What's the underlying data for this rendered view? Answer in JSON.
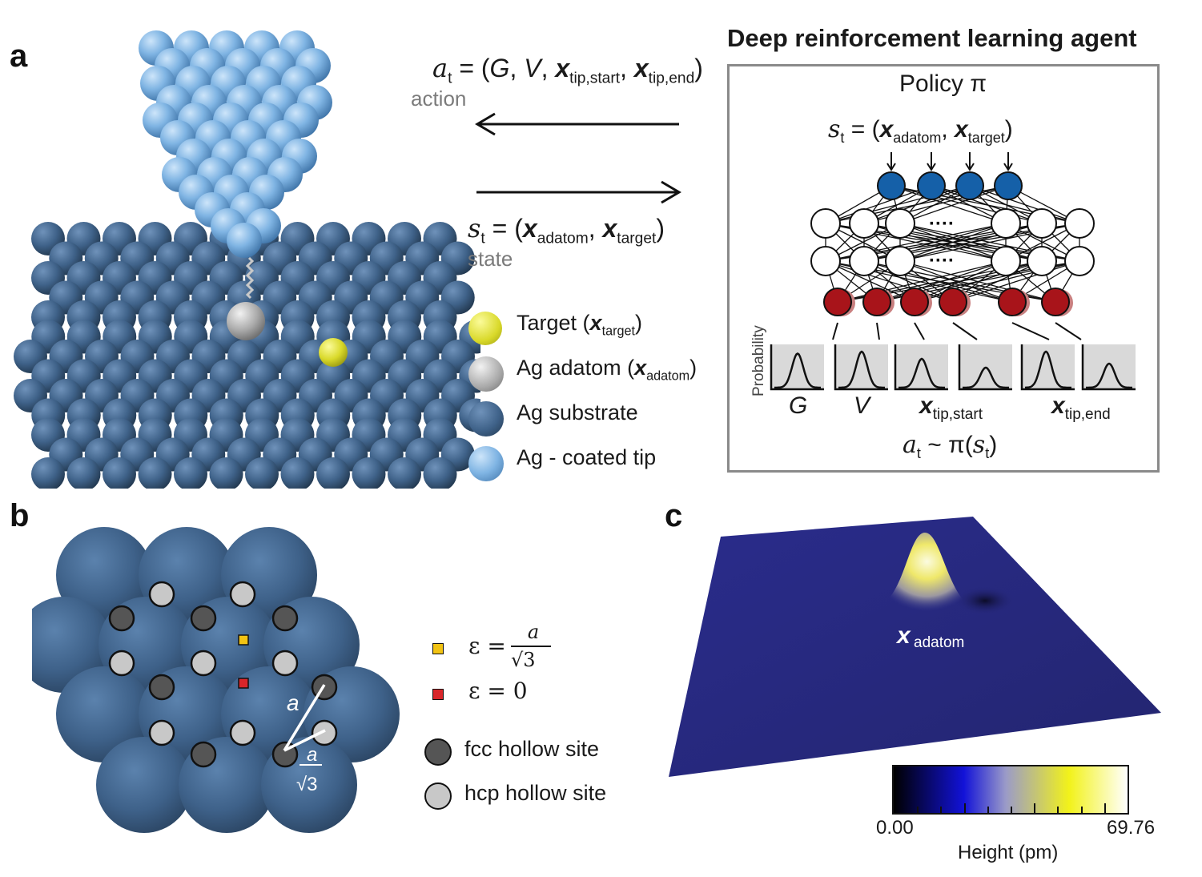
{
  "panels": {
    "a": "a",
    "b": "b",
    "c": "c"
  },
  "panel_a": {
    "action_eq": {
      "lhs": "a",
      "sub": "t",
      "eq": " = (",
      "g": "G",
      "comma1": ", ",
      "v": "V",
      "comma2": ", ",
      "x": "x",
      "sub_start": "tip,start",
      "comma3": ", ",
      "x2": "x",
      "sub_end": "tip,end",
      "close": ")"
    },
    "action_label": "action",
    "state_eq": {
      "lhs": "s",
      "sub": "t",
      "eq": " = (",
      "x": "x",
      "sub_adatom": "adatom",
      "comma": ", ",
      "x2": "x",
      "sub_target": "target",
      "close": ")"
    },
    "state_label": "state",
    "legend": [
      {
        "pre": "Target (",
        "x": "x",
        "sub": "target",
        "post": ")",
        "color": "#e2e23a"
      },
      {
        "pre": "Ag adatom (",
        "x": "x",
        "sub": "adatom",
        "post": ")",
        "color": "#b0b0b0"
      },
      {
        "pre": "Ag substrate",
        "x": "",
        "sub": "",
        "post": "",
        "color": "#3d5f86"
      },
      {
        "pre": "Ag - coated tip",
        "x": "",
        "sub": "",
        "post": "",
        "color": "#7fb4e3"
      }
    ],
    "agent": {
      "title": "Deep reinforcement learning agent",
      "policy": "Policy π",
      "state_eq": {
        "lhs": "s",
        "sub": "t",
        "eq": " = (",
        "x": "x",
        "sub_adatom": "adatom",
        "comma": ", ",
        "x2": "x",
        "sub_target": "target",
        "close": ")"
      },
      "ellipsis": "····",
      "ylabel": "Probability",
      "dist_labels": {
        "g": "G",
        "v": "V",
        "x1": "x",
        "x1_sub": "tip,start",
        "x2": "x",
        "x2_sub": "tip,end"
      },
      "sample_eq": {
        "a": "a",
        "a_sub": "t",
        "tilde": " ~ π(",
        "s": "s",
        "s_sub": "t",
        "close": ")"
      },
      "input_color": "#1560a8",
      "output_color": "#a8141a"
    }
  },
  "panel_b": {
    "lattice_label_a": "a",
    "lattice_label_frac_num": "a",
    "lattice_label_frac_den": "√3",
    "legend": [
      {
        "text": "ε = ",
        "num": "a",
        "den": "√3",
        "color": "#f2c313",
        "shape": "square"
      },
      {
        "text": "ε = 0",
        "num": "",
        "den": "",
        "color": "#d9262a",
        "shape": "square"
      },
      {
        "text": "fcc hollow site",
        "num": "",
        "den": "",
        "color": "#555555",
        "shape": "circle"
      },
      {
        "text": "hcp hollow site",
        "num": "",
        "den": "",
        "color": "#c8c8c8",
        "shape": "circle"
      }
    ]
  },
  "panel_c": {
    "peak_label_x": "x",
    "peak_label_sub": "adatom",
    "colorbar_min": "0.00",
    "colorbar_max": "69.76",
    "colorbar_label": "Height (pm)",
    "colormap": [
      "#000000",
      "#1212d8",
      "#9b9bc8",
      "#f2f21a",
      "#ffffff"
    ]
  }
}
